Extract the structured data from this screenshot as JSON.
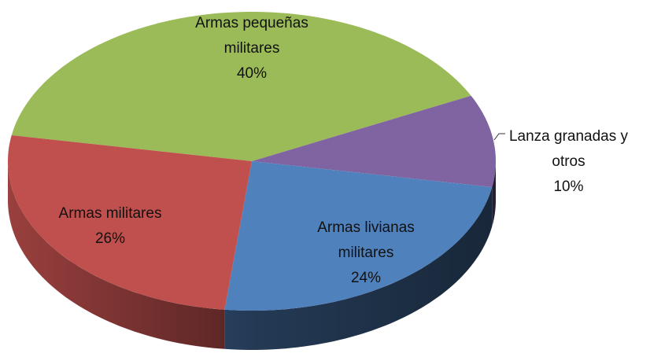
{
  "chart_data": {
    "type": "pie",
    "categories": [
      "Armas pequeñas militares",
      "Lanza granadas y otros",
      "Armas livianas militares",
      "Armas militares"
    ],
    "values": [
      40,
      10,
      24,
      26
    ],
    "value_labels": [
      "40%",
      "10%",
      "24%",
      "26%"
    ],
    "colors": [
      "#9bbb59",
      "#8064a2",
      "#4f81bd",
      "#c0504d"
    ]
  }
}
